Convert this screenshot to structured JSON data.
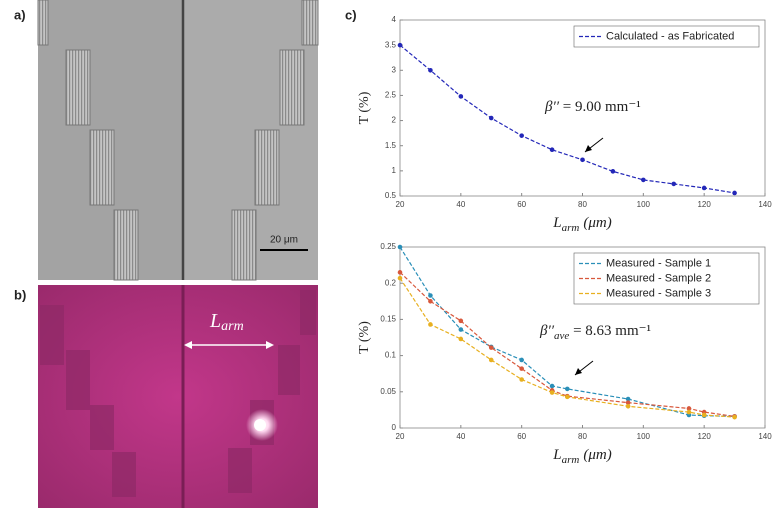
{
  "figure": {
    "panel_a": "a)",
    "panel_b": "b)",
    "panel_c": "c)",
    "scale_bar": "20 μm",
    "arm_label": {
      "main": "L",
      "sub": "arm"
    }
  },
  "chart_data": [
    {
      "type": "line",
      "xlim": [
        20,
        140
      ],
      "xticks": [
        20,
        40,
        60,
        80,
        100,
        120,
        140
      ],
      "ylim": [
        0.5,
        4
      ],
      "yticks": [
        0.5,
        1,
        1.5,
        2,
        2.5,
        3,
        3.5,
        4
      ],
      "xlabel": {
        "main": "L",
        "sub": "arm",
        "unit": "(μm)"
      },
      "ylabel": "T (%)",
      "legend": "upper right",
      "x": [
        20,
        30,
        40,
        50,
        60,
        70,
        80,
        90,
        100,
        110,
        120,
        130
      ],
      "series": [
        {
          "name": "Calculated - as Fabricated",
          "color": "#2327b8",
          "values": [
            3.5,
            3.0,
            2.48,
            2.05,
            1.7,
            1.42,
            1.22,
            0.99,
            0.82,
            0.74,
            0.66,
            0.56
          ]
        }
      ],
      "annotation": {
        "symbol": "β′′",
        "sub": "",
        "rest": " = 9.00 mm⁻¹"
      }
    },
    {
      "type": "line",
      "xlim": [
        20,
        140
      ],
      "xticks": [
        20,
        40,
        60,
        80,
        100,
        120,
        140
      ],
      "ylim": [
        0,
        0.25
      ],
      "yticks": [
        0,
        0.05,
        0.1,
        0.15,
        0.2,
        0.25
      ],
      "xlabel": {
        "main": "L",
        "sub": "arm",
        "unit": "(μm)"
      },
      "ylabel": "T (%)",
      "legend": "upper right",
      "x": [
        20,
        30,
        40,
        50,
        60,
        70,
        75,
        95,
        115,
        120,
        130
      ],
      "series": [
        {
          "name": "Measured - Sample 1",
          "color": "#2a8fb8",
          "values": [
            0.25,
            0.183,
            0.136,
            0.112,
            0.094,
            0.058,
            0.054,
            0.04,
            0.018,
            0.017,
            0.016
          ]
        },
        {
          "name": "Measured - Sample 2",
          "color": "#d8583c",
          "values": [
            0.215,
            0.175,
            0.148,
            0.111,
            0.082,
            0.052,
            0.044,
            0.035,
            0.027,
            0.022,
            0.016
          ]
        },
        {
          "name": "Measured - Sample 3",
          "color": "#e8b020",
          "values": [
            0.207,
            0.143,
            0.123,
            0.094,
            0.067,
            0.049,
            0.043,
            0.03,
            0.022,
            0.018,
            0.015
          ]
        }
      ],
      "annotation": {
        "symbol": "β′′",
        "sub": "ave",
        "rest": " = 8.63 mm⁻¹"
      }
    }
  ]
}
